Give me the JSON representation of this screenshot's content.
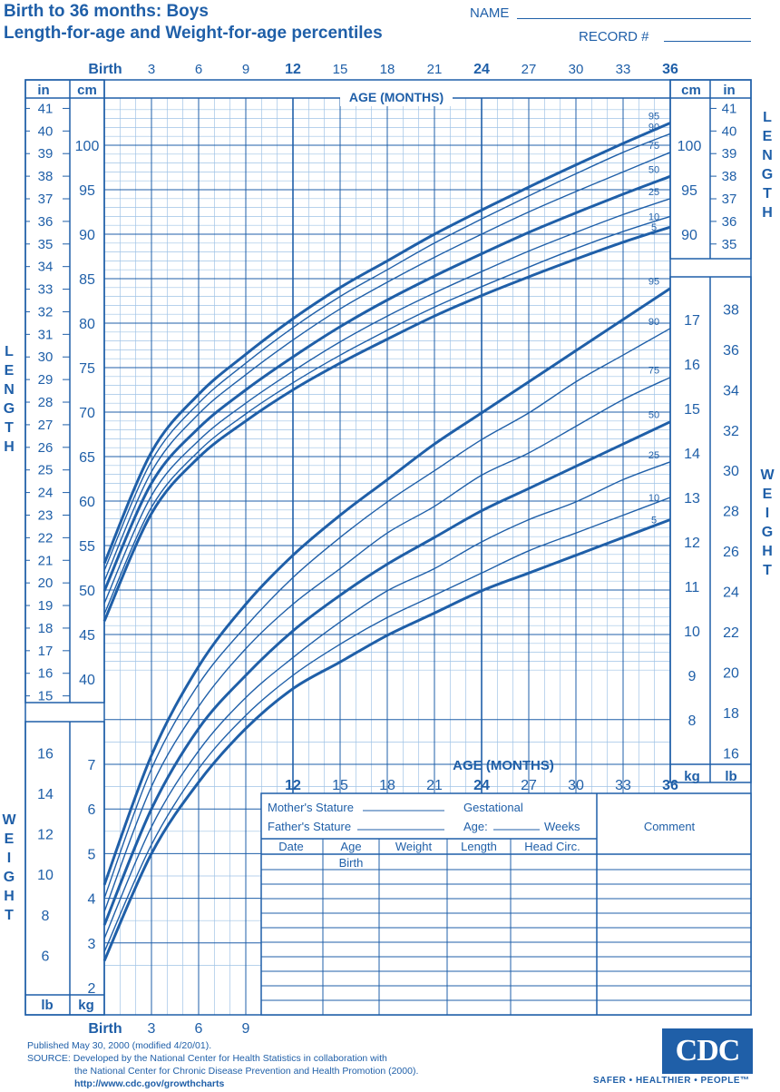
{
  "header": {
    "title_line1": "Birth to 36 months: Boys",
    "title_line2": "Length-for-age and Weight-for-age percentiles",
    "name_label": "NAME",
    "record_label": "RECORD #"
  },
  "axes": {
    "age_top_ticks": [
      "Birth",
      "3",
      "6",
      "9",
      "12",
      "15",
      "18",
      "21",
      "24",
      "27",
      "30",
      "33",
      "36"
    ],
    "age_bottom_left_ticks": [
      "Birth",
      "3",
      "6",
      "9"
    ],
    "age_mid_ticks": [
      "12",
      "15",
      "18",
      "21",
      "24",
      "27",
      "30",
      "33",
      "36"
    ],
    "age_title": "AGE (MONTHS)",
    "unit_in": "in",
    "unit_cm": "cm",
    "unit_kg": "kg",
    "unit_lb": "lb",
    "length_word": [
      "L",
      "E",
      "N",
      "G",
      "T",
      "H"
    ],
    "weight_word": [
      "W",
      "E",
      "I",
      "G",
      "H",
      "T"
    ]
  },
  "form": {
    "mother_stature": "Mother's Stature",
    "father_stature": "Father's Stature",
    "gestational": "Gestational",
    "age_label": "Age:",
    "weeks_label": "Weeks",
    "comment": "Comment",
    "columns": [
      "Date",
      "Age",
      "Weight",
      "Length",
      "Head  Circ."
    ],
    "first_age": "Birth"
  },
  "footer": {
    "published": "Published May 30, 2000 (modified 4/20/01).",
    "source1": "SOURCE: Developed by the National Center for Health Statistics in collaboration with",
    "source2": "the National Center for Chronic Disease Prevention and Health Promotion (2000).",
    "url": "http://www.cdc.gov/growthcharts",
    "logo": "CDC",
    "tagline": "SAFER • HEALTHIER • PEOPLE™"
  },
  "colors": {
    "ink": "#1f5fa8",
    "grid_light": "#9fc3e6"
  },
  "chart_data": [
    {
      "type": "line",
      "title": "Length-for-age percentiles",
      "xlabel": "AGE (MONTHS)",
      "ylabel": "LENGTH",
      "x": [
        0,
        3,
        6,
        9,
        12,
        15,
        18,
        21,
        24,
        27,
        30,
        33,
        36
      ],
      "xlim": [
        0,
        36
      ],
      "ylim": [
        40,
        104
      ],
      "y_unit": "cm",
      "series": [
        {
          "name": "95",
          "values": [
            53.0,
            65.5,
            72.0,
            76.5,
            80.5,
            84.0,
            87.0,
            90.0,
            92.7,
            95.3,
            97.8,
            100.2,
            102.5
          ]
        },
        {
          "name": "90",
          "values": [
            52.2,
            64.5,
            71.0,
            75.5,
            79.5,
            83.0,
            86.0,
            89.0,
            91.7,
            94.3,
            96.8,
            99.2,
            101.3
          ]
        },
        {
          "name": "75",
          "values": [
            51.0,
            63.3,
            69.8,
            74.2,
            78.1,
            81.6,
            84.6,
            87.4,
            90.0,
            92.5,
            94.8,
            97.0,
            99.2
          ]
        },
        {
          "name": "50",
          "values": [
            49.9,
            62.0,
            68.2,
            72.5,
            76.2,
            79.6,
            82.6,
            85.3,
            87.8,
            90.2,
            92.4,
            94.5,
            96.5
          ]
        },
        {
          "name": "25",
          "values": [
            48.5,
            60.6,
            66.8,
            71.0,
            74.6,
            77.9,
            80.8,
            83.4,
            85.8,
            88.1,
            90.2,
            92.2,
            94.0
          ]
        },
        {
          "name": "10",
          "values": [
            47.3,
            59.3,
            65.6,
            69.8,
            73.3,
            76.4,
            79.2,
            81.8,
            84.1,
            86.3,
            88.4,
            90.3,
            92.0
          ]
        },
        {
          "name": "5",
          "values": [
            46.5,
            58.6,
            64.9,
            69.0,
            72.5,
            75.5,
            78.2,
            80.8,
            83.1,
            85.2,
            87.2,
            89.1,
            90.8
          ]
        }
      ]
    },
    {
      "type": "line",
      "title": "Weight-for-age percentiles",
      "xlabel": "AGE (MONTHS)",
      "ylabel": "WEIGHT",
      "x": [
        0,
        3,
        6,
        9,
        12,
        15,
        18,
        21,
        24,
        27,
        30,
        33,
        36
      ],
      "xlim": [
        0,
        36
      ],
      "ylim": [
        1.5,
        18
      ],
      "y_unit": "kg",
      "series": [
        {
          "name": "95",
          "values": [
            4.3,
            7.2,
            9.2,
            10.6,
            11.7,
            12.6,
            13.4,
            14.2,
            14.9,
            15.6,
            16.3,
            17.0,
            17.7
          ]
        },
        {
          "name": "90",
          "values": [
            4.0,
            6.9,
            8.8,
            10.1,
            11.2,
            12.1,
            12.9,
            13.6,
            14.3,
            14.9,
            15.6,
            16.2,
            16.8
          ]
        },
        {
          "name": "75",
          "values": [
            3.7,
            6.5,
            8.3,
            9.6,
            10.6,
            11.4,
            12.2,
            12.8,
            13.5,
            14.0,
            14.6,
            15.2,
            15.7
          ]
        },
        {
          "name": "50",
          "values": [
            3.4,
            6.0,
            7.8,
            9.0,
            10.0,
            10.8,
            11.5,
            12.1,
            12.7,
            13.2,
            13.7,
            14.2,
            14.7
          ]
        },
        {
          "name": "25",
          "values": [
            3.1,
            5.6,
            7.3,
            8.5,
            9.4,
            10.2,
            10.9,
            11.4,
            12.0,
            12.5,
            12.9,
            13.4,
            13.8
          ]
        },
        {
          "name": "10",
          "values": [
            2.8,
            5.2,
            6.9,
            8.1,
            9.0,
            9.7,
            10.3,
            10.8,
            11.3,
            11.8,
            12.2,
            12.6,
            13.0
          ]
        },
        {
          "name": "5",
          "values": [
            2.6,
            5.0,
            6.6,
            7.8,
            8.7,
            9.3,
            9.9,
            10.4,
            10.9,
            11.3,
            11.7,
            12.1,
            12.5
          ]
        }
      ]
    }
  ]
}
